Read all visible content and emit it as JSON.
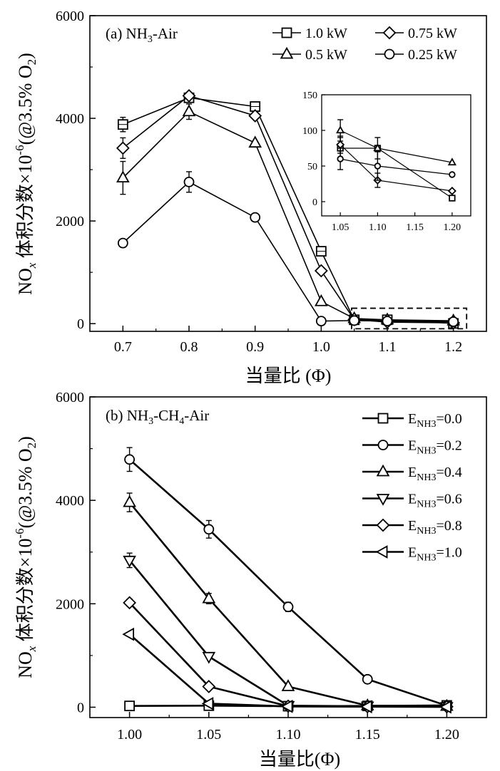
{
  "chart_data": [
    {
      "type": "line",
      "panel_label": "(a) NH",
      "panel_label_sub": "3",
      "panel_label_end": "-Air",
      "xlabel": "当量比 (Φ)",
      "ylabel_a": "NO",
      "ylabel_a_sub": "x",
      "ylabel_b": " 体积分数×10",
      "ylabel_sup": "-6",
      "ylabel_c": "(@3.5% O",
      "ylabel_c_sub": "2",
      "ylabel_d": ")",
      "xlim": [
        0.65,
        1.25
      ],
      "ylim": [
        -150,
        6000
      ],
      "xticks": [
        "0.7",
        "0.8",
        "0.9",
        "1.0",
        "1.1",
        "1.2"
      ],
      "yticks": [
        "0",
        "2000",
        "4000",
        "6000"
      ],
      "series": [
        {
          "name": "1.0 kW",
          "marker": "square",
          "x": [
            0.7,
            0.8,
            0.9,
            1.0,
            1.05,
            1.1,
            1.2
          ],
          "values": [
            3880,
            4400,
            4230,
            1410,
            75,
            75,
            5
          ],
          "err": [
            140,
            0,
            0,
            0,
            0,
            0,
            0
          ]
        },
        {
          "name": "0.75 kW",
          "marker": "diamond",
          "x": [
            0.7,
            0.8,
            0.9,
            1.0,
            1.05,
            1.1,
            1.2
          ],
          "values": [
            3420,
            4440,
            4050,
            1030,
            80,
            30,
            15
          ],
          "err": [
            200,
            0,
            0,
            0,
            0,
            0,
            0
          ]
        },
        {
          "name": "0.5 kW",
          "marker": "triangle-up",
          "x": [
            0.7,
            0.8,
            0.9,
            1.0,
            1.05,
            1.1,
            1.2
          ],
          "values": [
            2840,
            4130,
            3520,
            430,
            100,
            75,
            55
          ],
          "err": [
            320,
            150,
            0,
            0,
            0,
            0,
            0
          ]
        },
        {
          "name": "0.25 kW",
          "marker": "circle",
          "x": [
            0.7,
            0.8,
            0.9,
            1.0,
            1.05,
            1.1,
            1.2
          ],
          "values": [
            1570,
            2760,
            2070,
            50,
            60,
            50,
            38
          ],
          "err": [
            0,
            200,
            0,
            0,
            0,
            0,
            0
          ]
        }
      ],
      "inset": {
        "xlim": [
          1.025,
          1.225
        ],
        "ylim": [
          -20,
          150
        ],
        "xticks": [
          "1.05",
          "1.10",
          "1.15",
          "1.20"
        ],
        "yticks": [
          "0",
          "50",
          "100",
          "150"
        ],
        "err": {
          "1.0 kW": [
            15,
            15,
            0
          ],
          "0.75 kW": [
            12,
            10,
            0
          ],
          "0.5 kW": [
            15,
            0,
            0
          ],
          "0.25 kW": [
            15,
            20,
            0
          ]
        }
      },
      "legend": "top-right, 2 columns"
    },
    {
      "type": "line",
      "panel_label": "(b) NH",
      "panel_label_sub": "3",
      "panel_label_mid": "-CH",
      "panel_label_sub2": "4",
      "panel_label_end": "-Air",
      "xlabel": "当量比(Φ)",
      "ylabel_a": "NO",
      "ylabel_a_sub": "x",
      "ylabel_b": " 体积分数×10",
      "ylabel_sup": "-6",
      "ylabel_c": "(@3.5% O",
      "ylabel_c_sub": "2",
      "ylabel_d": ")",
      "xlim": [
        0.975,
        1.225
      ],
      "ylim": [
        -200,
        6000
      ],
      "xticks": [
        "1.00",
        "1.05",
        "1.10",
        "1.15",
        "1.20"
      ],
      "yticks": [
        "0",
        "2000",
        "4000",
        "6000"
      ],
      "x": [
        1.0,
        1.05,
        1.1,
        1.15,
        1.2
      ],
      "series": [
        {
          "name_main": "E",
          "name_sub": "NH3",
          "name_val": "=0.0",
          "marker": "square",
          "values": [
            25,
            30,
            20,
            25,
            35
          ],
          "err": [
            0,
            0,
            0,
            0,
            0
          ]
        },
        {
          "name_main": "E",
          "name_sub": "NH3",
          "name_val": "=0.2",
          "marker": "circle",
          "values": [
            4790,
            3440,
            1940,
            540,
            30
          ],
          "err": [
            230,
            170,
            90,
            0,
            0
          ]
        },
        {
          "name_main": "E",
          "name_sub": "NH3",
          "name_val": "=0.4",
          "marker": "triangle-up",
          "values": [
            3960,
            2100,
            400,
            30,
            20
          ],
          "err": [
            180,
            100,
            0,
            0,
            0
          ]
        },
        {
          "name_main": "E",
          "name_sub": "NH3",
          "name_val": "=0.6",
          "marker": "triangle-down",
          "values": [
            2840,
            980,
            30,
            20,
            10
          ],
          "err": [
            140,
            0,
            0,
            0,
            0
          ]
        },
        {
          "name_main": "E",
          "name_sub": "NH3",
          "name_val": "=0.8",
          "marker": "diamond",
          "values": [
            2020,
            400,
            20,
            10,
            10
          ],
          "err": [
            70,
            0,
            0,
            0,
            0
          ]
        },
        {
          "name_main": "E",
          "name_sub": "NH3",
          "name_val": "=1.0",
          "marker": "triangle-left",
          "values": [
            1410,
            70,
            15,
            10,
            5
          ],
          "err": [
            0,
            0,
            0,
            0,
            0
          ]
        }
      ],
      "legend": "top-right"
    }
  ]
}
